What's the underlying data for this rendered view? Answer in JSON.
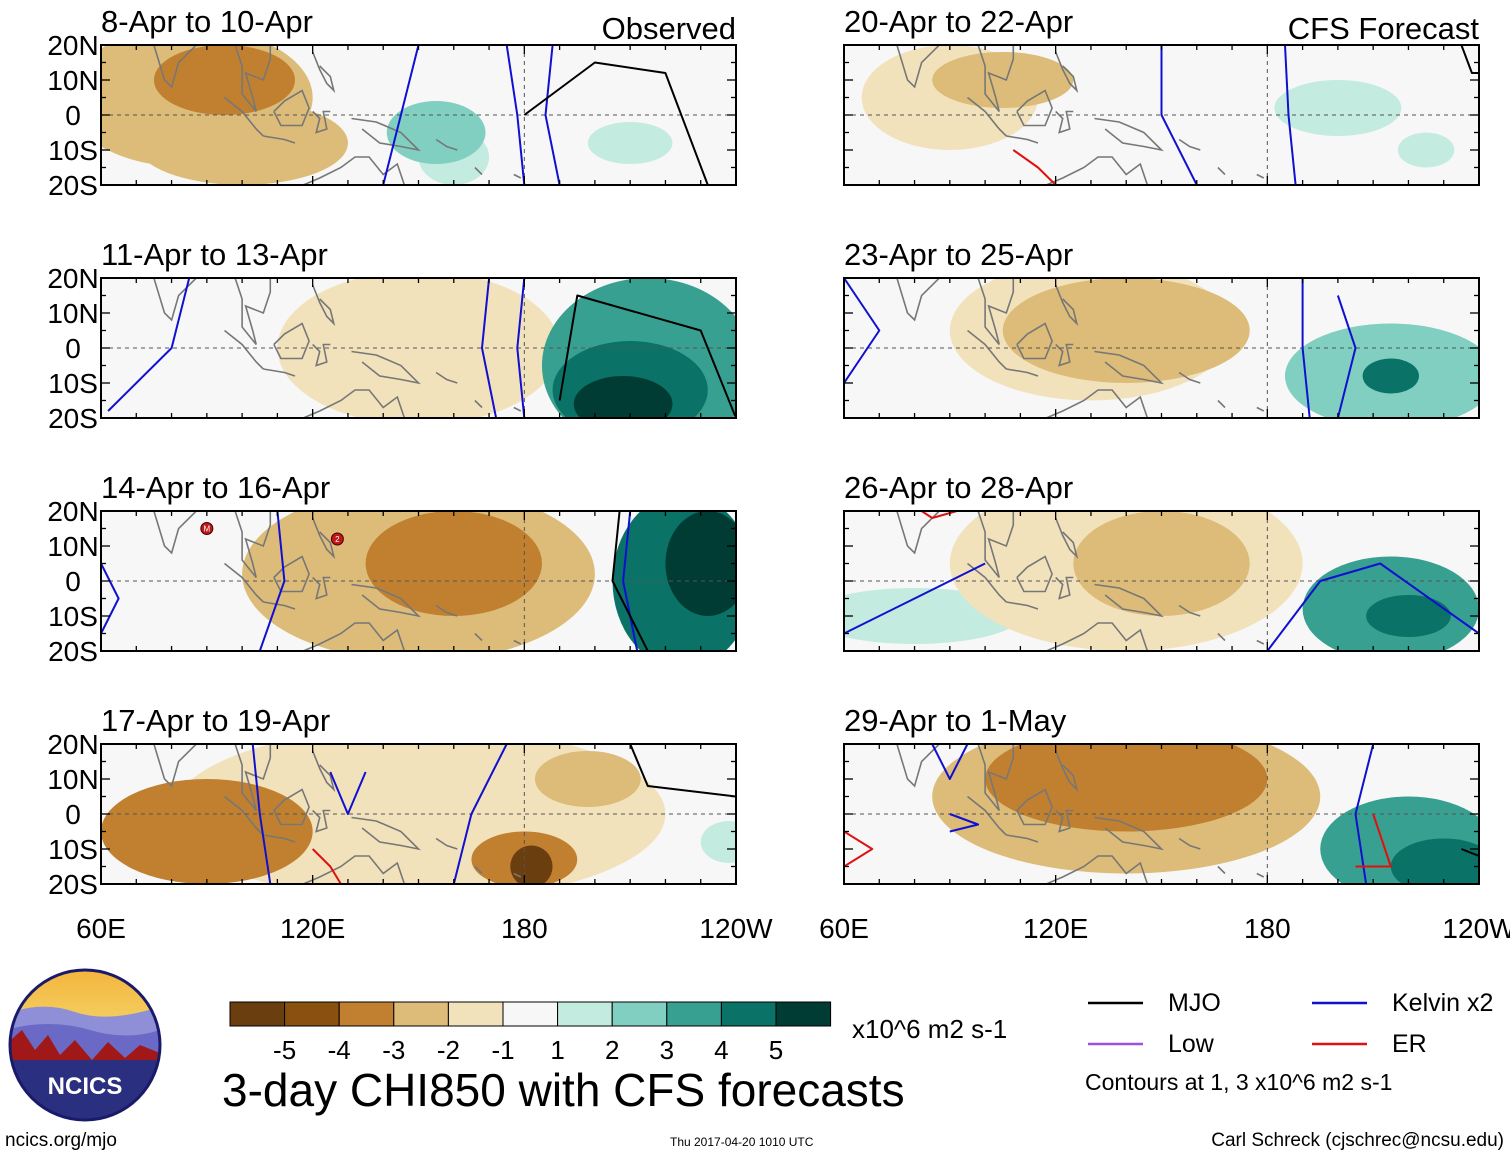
{
  "figure": {
    "title": "3-day CHI850 with CFS forecasts",
    "left_column_label": "Observed",
    "right_column_label": "CFS Forecast",
    "units_label": "x10^6 m2 s-1",
    "footer_left": "ncics.org/mjo",
    "footer_center": "Thu 2017-04-20 1010 UTC",
    "footer_right": "Carl Schreck (cjschrec@ncsu.edu)",
    "logo_text": "NCICS"
  },
  "axes": {
    "lat_ticks": [
      "20N",
      "10N",
      "0",
      "10S",
      "20S"
    ],
    "lon_ticks": [
      "60E",
      "120E",
      "180",
      "120W"
    ],
    "lat_range": [
      -20,
      20
    ],
    "lon_range": [
      60,
      240
    ]
  },
  "colorbar": {
    "colors": [
      "#6b3e10",
      "#8a5010",
      "#c08030",
      "#dcbc78",
      "#f2e2bc",
      "#f7f7f7",
      "#c4ebe0",
      "#80cfc0",
      "#38a090",
      "#0a7266",
      "#003c34"
    ],
    "labels": [
      "-5",
      "-4",
      "-3",
      "-2",
      "-1",
      "1",
      "2",
      "3",
      "4",
      "5"
    ]
  },
  "legend": {
    "items": [
      {
        "label": "MJO",
        "color": "#000000"
      },
      {
        "label": "Kelvin x2",
        "color": "#1010d0"
      },
      {
        "label": "Low",
        "color": "#9b50e0"
      },
      {
        "label": "ER",
        "color": "#e01010"
      }
    ],
    "note": "Contours at 1, 3 x10^6 m2 s-1"
  },
  "panels": [
    {
      "title": "8-Apr to 10-Apr",
      "column": "observed",
      "blobs": [
        {
          "lon": 85,
          "lat": 5,
          "rx": 35,
          "ry": 20,
          "v": -2
        },
        {
          "lon": 100,
          "lat": -8,
          "rx": 30,
          "ry": 12,
          "v": -2.5
        },
        {
          "lon": 95,
          "lat": 10,
          "rx": 20,
          "ry": 10,
          "v": -3
        },
        {
          "lon": 155,
          "lat": -5,
          "rx": 14,
          "ry": 9,
          "v": 2.2
        },
        {
          "lon": 160,
          "lat": -12,
          "rx": 10,
          "ry": 8,
          "v": 1.2
        },
        {
          "lon": 210,
          "lat": -8,
          "rx": 12,
          "ry": 6,
          "v": 1.2
        }
      ],
      "lines": [
        {
          "type": "kelvin",
          "points": [
            [
              150,
              20
            ],
            [
              145,
              0
            ],
            [
              140,
              -20
            ]
          ]
        },
        {
          "type": "kelvin",
          "points": [
            [
              175,
              20
            ],
            [
              178,
              0
            ],
            [
              180,
              -20
            ]
          ]
        },
        {
          "type": "kelvin",
          "points": [
            [
              188,
              20
            ],
            [
              186,
              0
            ],
            [
              190,
              -20
            ]
          ]
        },
        {
          "type": "mjo",
          "points": [
            [
              180,
              0
            ],
            [
              200,
              15
            ],
            [
              220,
              12
            ],
            [
              232,
              -20
            ]
          ]
        }
      ],
      "markers": []
    },
    {
      "title": "11-Apr to 13-Apr",
      "column": "observed",
      "blobs": [
        {
          "lon": 150,
          "lat": 0,
          "rx": 40,
          "ry": 22,
          "v": -1.3
        },
        {
          "lon": 215,
          "lat": -5,
          "rx": 30,
          "ry": 25,
          "v": 3
        },
        {
          "lon": 210,
          "lat": -12,
          "rx": 22,
          "ry": 14,
          "v": 4.2
        },
        {
          "lon": 208,
          "lat": -16,
          "rx": 14,
          "ry": 8,
          "v": 5.5
        }
      ],
      "lines": [
        {
          "type": "kelvin",
          "points": [
            [
              85,
              20
            ],
            [
              80,
              0
            ],
            [
              62,
              -18
            ]
          ]
        },
        {
          "type": "kelvin",
          "points": [
            [
              170,
              20
            ],
            [
              168,
              0
            ],
            [
              172,
              -20
            ]
          ]
        },
        {
          "type": "kelvin",
          "points": [
            [
              180,
              20
            ],
            [
              178,
              0
            ],
            [
              180,
              -20
            ]
          ]
        },
        {
          "type": "mjo",
          "points": [
            [
              190,
              -15
            ],
            [
              195,
              15
            ],
            [
              230,
              5
            ],
            [
              240,
              -20
            ]
          ]
        }
      ],
      "markers": []
    },
    {
      "title": "14-Apr to 16-Apr",
      "column": "observed",
      "blobs": [
        {
          "lon": 150,
          "lat": 2,
          "rx": 50,
          "ry": 25,
          "v": -2
        },
        {
          "lon": 160,
          "lat": 5,
          "rx": 25,
          "ry": 15,
          "v": -3.5
        },
        {
          "lon": 225,
          "lat": 0,
          "rx": 20,
          "ry": 25,
          "v": 4.5
        },
        {
          "lon": 232,
          "lat": 5,
          "rx": 12,
          "ry": 15,
          "v": 6
        }
      ],
      "lines": [
        {
          "type": "kelvin",
          "points": [
            [
              60,
              5
            ],
            [
              65,
              -5
            ],
            [
              60,
              -15
            ]
          ]
        },
        {
          "type": "kelvin",
          "points": [
            [
              110,
              20
            ],
            [
              112,
              0
            ],
            [
              105,
              -20
            ]
          ]
        },
        {
          "type": "kelvin",
          "points": [
            [
              210,
              20
            ],
            [
              208,
              0
            ],
            [
              212,
              -20
            ]
          ]
        },
        {
          "type": "mjo",
          "points": [
            [
              207,
              20
            ],
            [
              205,
              0
            ],
            [
              215,
              -20
            ]
          ]
        }
      ],
      "markers": [
        {
          "lon": 90,
          "lat": 15,
          "text": "M"
        },
        {
          "lon": 127,
          "lat": 12,
          "text": "2"
        }
      ]
    },
    {
      "title": "17-Apr to 19-Apr",
      "column": "observed",
      "blobs": [
        {
          "lon": 150,
          "lat": 0,
          "rx": 70,
          "ry": 25,
          "v": -1.6
        },
        {
          "lon": 90,
          "lat": -5,
          "rx": 30,
          "ry": 15,
          "v": -3.2
        },
        {
          "lon": 180,
          "lat": -13,
          "rx": 15,
          "ry": 8,
          "v": -3.5
        },
        {
          "lon": 182,
          "lat": -15,
          "rx": 6,
          "ry": 6,
          "v": -5
        },
        {
          "lon": 198,
          "lat": 10,
          "rx": 15,
          "ry": 8,
          "v": -2
        },
        {
          "lon": 238,
          "lat": -8,
          "rx": 8,
          "ry": 6,
          "v": 1.2
        }
      ],
      "lines": [
        {
          "type": "kelvin",
          "points": [
            [
              103,
              20
            ],
            [
              105,
              0
            ],
            [
              108,
              -20
            ]
          ]
        },
        {
          "type": "kelvin",
          "points": [
            [
              125,
              12
            ],
            [
              130,
              0
            ],
            [
              135,
              12
            ]
          ]
        },
        {
          "type": "kelvin",
          "points": [
            [
              175,
              20
            ],
            [
              165,
              0
            ],
            [
              160,
              -20
            ]
          ]
        },
        {
          "type": "er",
          "points": [
            [
              120,
              -10
            ],
            [
              125,
              -15
            ],
            [
              128,
              -20
            ]
          ]
        },
        {
          "type": "mjo",
          "points": [
            [
              210,
              20
            ],
            [
              215,
              8
            ],
            [
              240,
              5
            ]
          ]
        }
      ],
      "markers": []
    },
    {
      "title": "20-Apr to 22-Apr",
      "column": "forecast",
      "blobs": [
        {
          "lon": 90,
          "lat": 5,
          "rx": 25,
          "ry": 15,
          "v": -1.8
        },
        {
          "lon": 105,
          "lat": 10,
          "rx": 20,
          "ry": 8,
          "v": -2.3
        },
        {
          "lon": 200,
          "lat": 2,
          "rx": 18,
          "ry": 8,
          "v": 1.2
        },
        {
          "lon": 225,
          "lat": -10,
          "rx": 8,
          "ry": 5,
          "v": 1.2
        }
      ],
      "lines": [
        {
          "type": "kelvin",
          "points": [
            [
              150,
              20
            ],
            [
              150,
              0
            ],
            [
              160,
              -20
            ]
          ]
        },
        {
          "type": "kelvin",
          "points": [
            [
              185,
              20
            ],
            [
              186,
              0
            ],
            [
              188,
              -20
            ]
          ]
        },
        {
          "type": "er",
          "points": [
            [
              108,
              -10
            ],
            [
              115,
              -15
            ],
            [
              120,
              -20
            ]
          ]
        },
        {
          "type": "mjo",
          "points": [
            [
              235,
              20
            ],
            [
              238,
              12
            ],
            [
              240,
              12
            ]
          ]
        }
      ],
      "markers": []
    },
    {
      "title": "23-Apr to 25-Apr",
      "column": "forecast",
      "blobs": [
        {
          "lon": 140,
          "lat": 5,
          "rx": 35,
          "ry": 15,
          "v": -2.5
        },
        {
          "lon": 130,
          "lat": 5,
          "rx": 40,
          "ry": 20,
          "v": -1.3
        },
        {
          "lon": 215,
          "lat": -8,
          "rx": 30,
          "ry": 15,
          "v": 2.5
        },
        {
          "lon": 215,
          "lat": -8,
          "rx": 8,
          "ry": 5,
          "v": 4.5
        }
      ],
      "lines": [
        {
          "type": "kelvin",
          "points": [
            [
              60,
              20
            ],
            [
              70,
              5
            ],
            [
              60,
              -10
            ]
          ]
        },
        {
          "type": "kelvin",
          "points": [
            [
              190,
              20
            ],
            [
              190,
              0
            ],
            [
              192,
              -20
            ]
          ]
        },
        {
          "type": "kelvin",
          "points": [
            [
              200,
              15
            ],
            [
              205,
              0
            ],
            [
              200,
              -20
            ]
          ]
        }
      ],
      "markers": []
    },
    {
      "title": "26-Apr to 28-Apr",
      "column": "forecast",
      "blobs": [
        {
          "lon": 140,
          "lat": 5,
          "rx": 50,
          "ry": 25,
          "v": -1.8
        },
        {
          "lon": 150,
          "lat": 5,
          "rx": 25,
          "ry": 15,
          "v": -2.5
        },
        {
          "lon": 80,
          "lat": -10,
          "rx": 30,
          "ry": 8,
          "v": 1.2
        },
        {
          "lon": 215,
          "lat": -8,
          "rx": 25,
          "ry": 15,
          "v": 3
        },
        {
          "lon": 220,
          "lat": -10,
          "rx": 12,
          "ry": 6,
          "v": 4.5
        }
      ],
      "lines": [
        {
          "type": "kelvin",
          "points": [
            [
              60,
              -15
            ],
            [
              80,
              -5
            ],
            [
              100,
              5
            ]
          ]
        },
        {
          "type": "kelvin",
          "points": [
            [
              180,
              -20
            ],
            [
              195,
              0
            ],
            [
              212,
              5
            ],
            [
              240,
              -15
            ]
          ]
        },
        {
          "type": "er",
          "points": [
            [
              82,
              20
            ],
            [
              85,
              18
            ],
            [
              92,
              20
            ]
          ]
        }
      ],
      "markers": []
    },
    {
      "title": "29-Apr to 1-May",
      "column": "forecast",
      "blobs": [
        {
          "lon": 140,
          "lat": 5,
          "rx": 55,
          "ry": 22,
          "v": -2.5
        },
        {
          "lon": 140,
          "lat": 10,
          "rx": 40,
          "ry": 15,
          "v": -3.2
        },
        {
          "lon": 220,
          "lat": -10,
          "rx": 25,
          "ry": 15,
          "v": 3
        },
        {
          "lon": 230,
          "lat": -15,
          "rx": 15,
          "ry": 8,
          "v": 4.5
        }
      ],
      "lines": [
        {
          "type": "kelvin",
          "points": [
            [
              85,
              20
            ],
            [
              90,
              10
            ],
            [
              95,
              20
            ]
          ]
        },
        {
          "type": "kelvin",
          "points": [
            [
              90,
              0
            ],
            [
              98,
              -3
            ],
            [
              90,
              -5
            ]
          ]
        },
        {
          "type": "kelvin",
          "points": [
            [
              210,
              20
            ],
            [
              205,
              0
            ],
            [
              208,
              -20
            ]
          ]
        },
        {
          "type": "er",
          "points": [
            [
              60,
              -5
            ],
            [
              68,
              -10
            ],
            [
              60,
              -15
            ]
          ]
        },
        {
          "type": "er",
          "points": [
            [
              210,
              0
            ],
            [
              215,
              -15
            ],
            [
              205,
              -15
            ]
          ]
        },
        {
          "type": "mjo",
          "points": [
            [
              235,
              -10
            ],
            [
              240,
              -12
            ]
          ]
        }
      ],
      "markers": []
    }
  ]
}
